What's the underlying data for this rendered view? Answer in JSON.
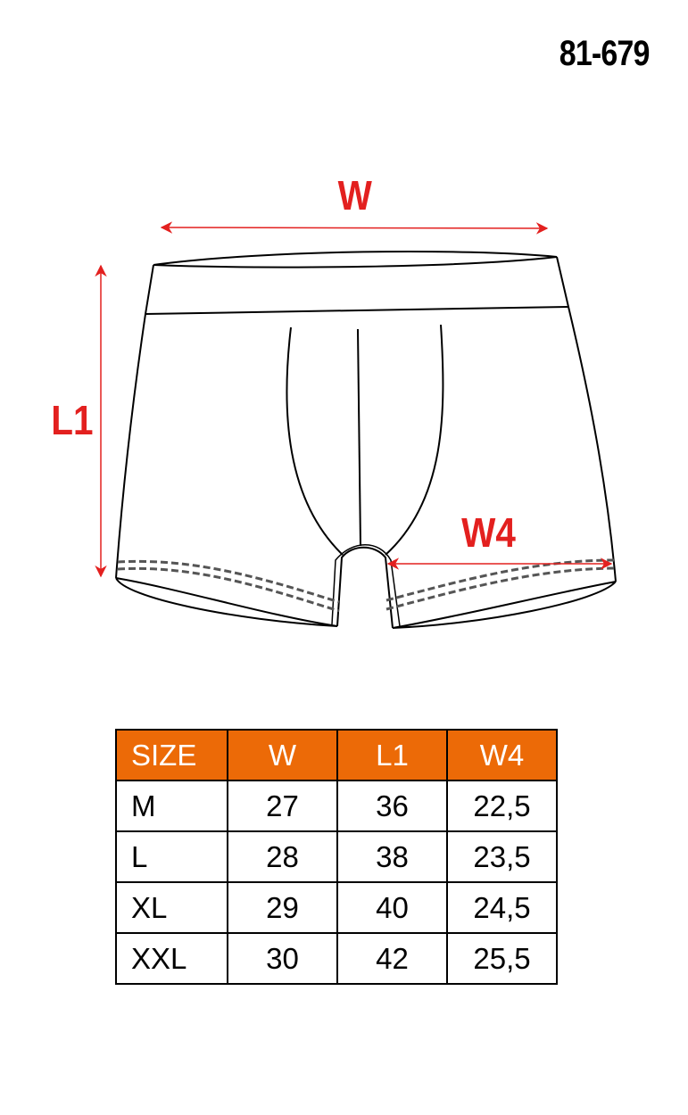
{
  "product_code": "81-679",
  "labels": {
    "width": "W",
    "length": "L1",
    "leg_width": "W4"
  },
  "colors": {
    "header_bg": "#ec6a07",
    "header_text": "#ffffff",
    "measure_arrow": "#e3201f"
  },
  "table": {
    "headers": [
      "SIZE",
      "W",
      "L1",
      "W4"
    ],
    "rows": [
      [
        "M",
        "27",
        "36",
        "22,5"
      ],
      [
        "L",
        "28",
        "38",
        "23,5"
      ],
      [
        "XL",
        "29",
        "40",
        "24,5"
      ],
      [
        "XXL",
        "30",
        "42",
        "25,5"
      ]
    ]
  }
}
